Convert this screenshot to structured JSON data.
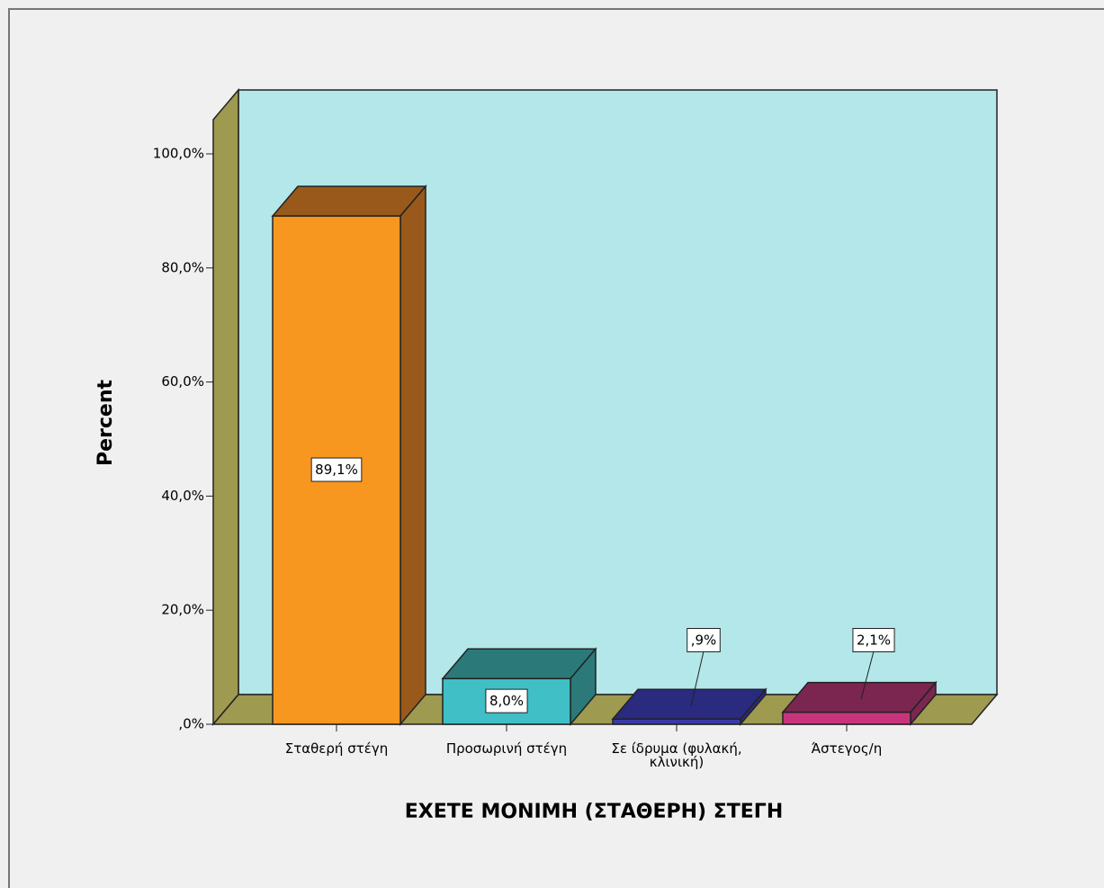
{
  "chart_data": {
    "type": "bar3d",
    "x_label": "ΕΧΕΤΕ ΜΟΝΙΜΗ (ΣΤΑΘΕΡΗ) ΣΤΕΓΗ",
    "y_label": "Percent",
    "categories": [
      "Σταθερή στέγη",
      "Προσωρινή στέγη",
      "Σε ίδρυμα (φυλακή, κλινική)",
      "Άστεγος/η"
    ],
    "values": [
      89.1,
      8.0,
      0.9,
      2.1
    ],
    "value_labels": [
      "89,1%",
      "8,0%",
      ",9%",
      "2,1%"
    ],
    "colors": [
      "#f7971f",
      "#40bfc6",
      "#3a3aa6",
      "#c7347c"
    ],
    "side_colors": [
      "#99591a",
      "#2b7a79",
      "#2a2a7e",
      "#7b2650"
    ],
    "ylim": [
      0,
      106
    ],
    "yticks": [
      {
        "value": 0,
        "label": ",0%"
      },
      {
        "value": 20,
        "label": "20,0%"
      },
      {
        "value": 40,
        "label": "40,0%"
      },
      {
        "value": 60,
        "label": "60,0%"
      },
      {
        "value": 80,
        "label": "80,0%"
      },
      {
        "value": 100,
        "label": "100,0%"
      }
    ]
  }
}
